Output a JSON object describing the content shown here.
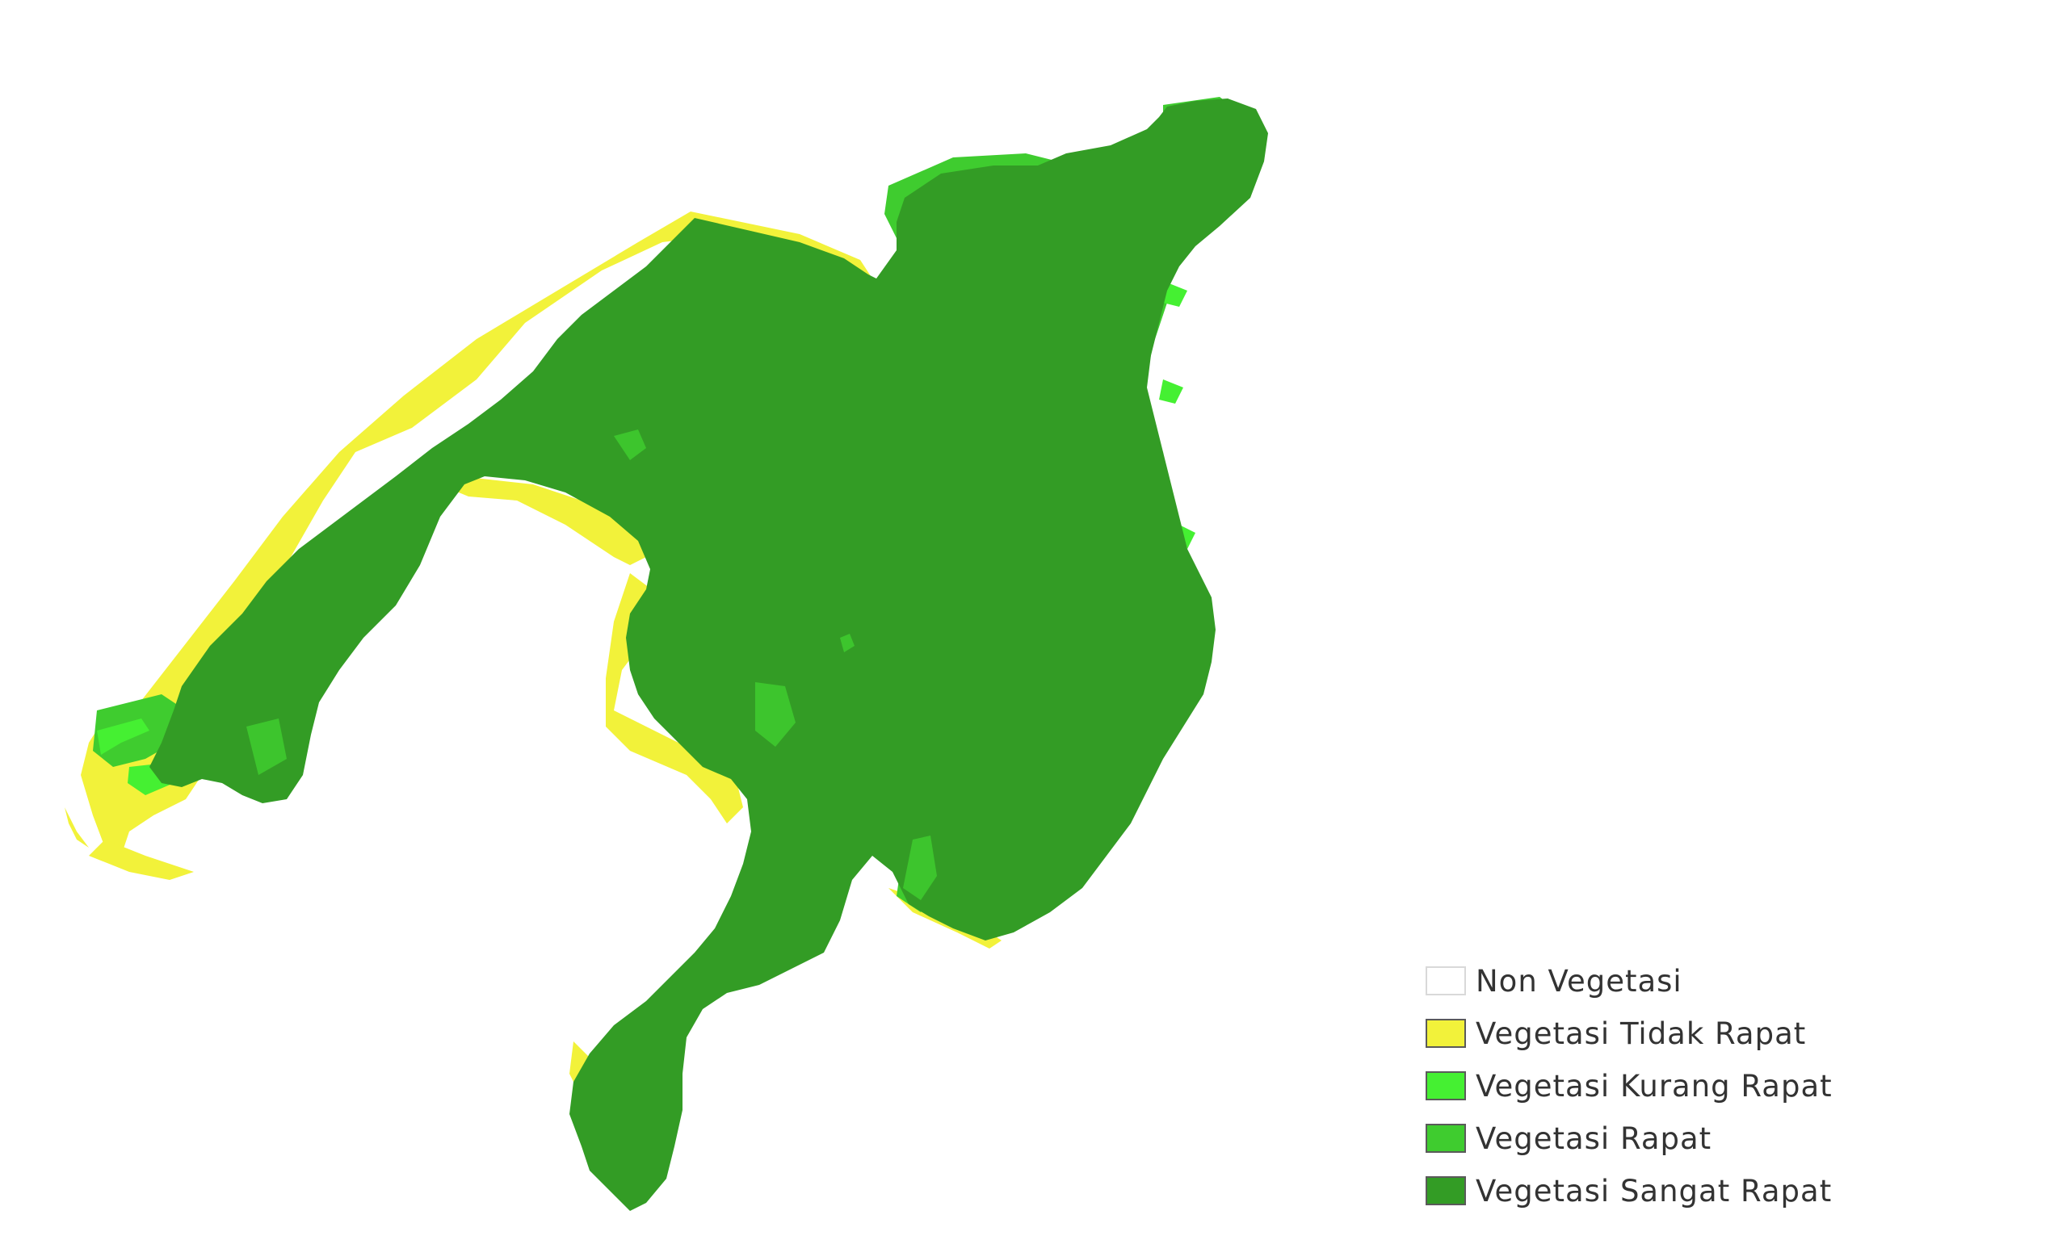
{
  "legend": {
    "items": [
      {
        "label": "Non Vegetasi",
        "color": "#ffffff"
      },
      {
        "label": "Vegetasi Tidak Rapat",
        "color": "#f2f23a"
      },
      {
        "label": "Vegetasi Kurang Rapat",
        "color": "#45f032"
      },
      {
        "label": "Vegetasi Rapat",
        "color": "#3fcc2f"
      },
      {
        "label": "Vegetasi Sangat Rapat",
        "color": "#339c25"
      }
    ]
  }
}
